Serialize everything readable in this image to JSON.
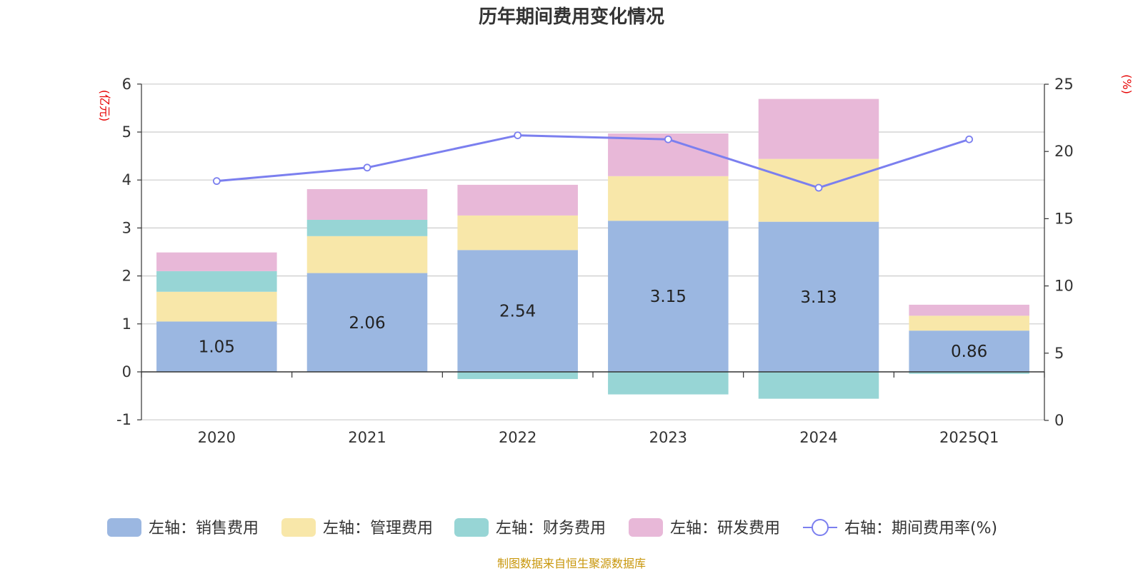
{
  "chart_data": {
    "type": "bar",
    "title": "历年期间费用变化情况",
    "categories": [
      "2020",
      "2021",
      "2022",
      "2023",
      "2024",
      "2025Q1"
    ],
    "left_axis": {
      "unit": "(亿元)",
      "ylim": [
        -1,
        6
      ],
      "ticks": [
        6,
        5,
        4,
        3,
        2,
        1,
        0,
        -1
      ]
    },
    "right_axis": {
      "unit": "(%)",
      "ylim": [
        0,
        25
      ],
      "ticks": [
        25,
        20,
        15,
        10,
        5,
        0
      ]
    },
    "series": [
      {
        "name": "左轴：销售费用",
        "axis": "left",
        "color": "#9bb7e1",
        "values": [
          1.05,
          2.06,
          2.54,
          3.15,
          3.13,
          0.86
        ],
        "labels": [
          "1.05",
          "2.06",
          "2.54",
          "3.15",
          "3.13",
          "0.86"
        ]
      },
      {
        "name": "左轴：管理费用",
        "axis": "left",
        "color": "#f8e7a9",
        "values": [
          0.62,
          0.77,
          0.72,
          0.93,
          1.31,
          0.31
        ]
      },
      {
        "name": "左轴：财务费用",
        "axis": "left",
        "color": "#97d5d5",
        "values": [
          0.43,
          0.34,
          -0.15,
          -0.47,
          -0.56,
          -0.04
        ]
      },
      {
        "name": "左轴：研发费用",
        "axis": "left",
        "color": "#e8b8d8",
        "values": [
          0.39,
          0.64,
          0.64,
          0.89,
          1.25,
          0.23
        ]
      }
    ],
    "line_series": {
      "name": "右轴：期间费用率(%)",
      "axis": "right",
      "color": "#7b7fef",
      "values": [
        17.8,
        18.8,
        21.2,
        20.9,
        17.3,
        20.9
      ]
    },
    "grid": true,
    "legend_position": "bottom"
  },
  "source": "制图数据来自恒生聚源数据库"
}
